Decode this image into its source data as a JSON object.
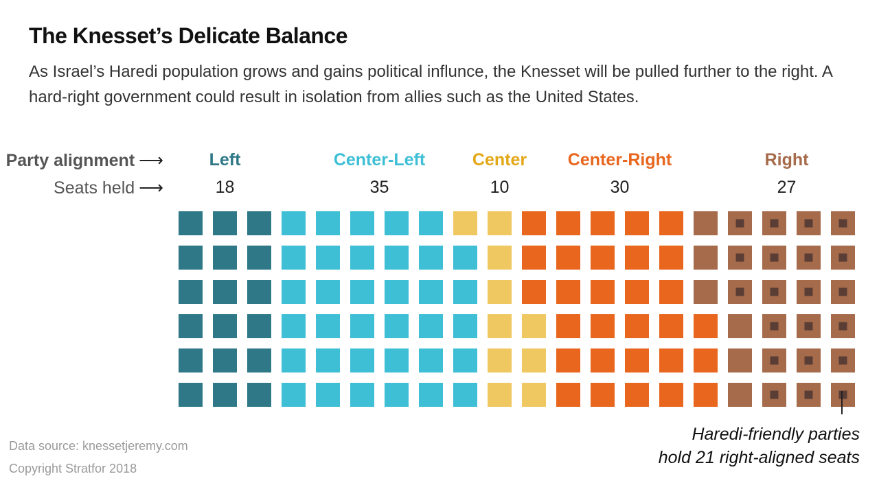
{
  "title": "The Knesset’s Delicate Balance",
  "subtitle": "As Israel’s Haredi population grows and gains political influnce, the Knesset will be pulled further to the right. A hard-right government could result in isolation from allies such as the United States.",
  "labels": {
    "alignment": "Party alignment",
    "seats": "Seats held",
    "arrow": "⟶"
  },
  "annotation": {
    "line1": "Haredi-friendly parties",
    "line2": "hold 21 right-aligned seats"
  },
  "footer": {
    "source": "Data source: knessetjeremy.com",
    "copyright": "Copyright Stratfor 2018"
  },
  "colors": {
    "Left": "#2e7887",
    "Center-Left": "#3ebfd6",
    "Center": "#f0c862",
    "Center-Right": "#e8661e",
    "Right": "#a56b4b",
    "Left-label": "#2e7887",
    "Center-Left-label": "#3ebfd6",
    "Center-label": "#e3a817",
    "Center-Right-label": "#e8661e",
    "Right-label": "#a56b4b",
    "haredi_marker": "#5a3e36"
  },
  "chart_data": {
    "type": "waffle",
    "rows": 6,
    "columns": 20,
    "fill_order": "column-major, bottom to top",
    "parties": [
      {
        "name": "Left",
        "seats": 18,
        "seats_label": "18"
      },
      {
        "name": "Center-Left",
        "seats": 35,
        "seats_label": "35"
      },
      {
        "name": "Center",
        "seats": 10,
        "seats_label": "10"
      },
      {
        "name": "Center-Right",
        "seats": 30,
        "seats_label": "30"
      },
      {
        "name": "Right",
        "seats": 27,
        "seats_label": "27",
        "haredi_friendly_seats": 21
      }
    ],
    "total_seats": 120
  }
}
